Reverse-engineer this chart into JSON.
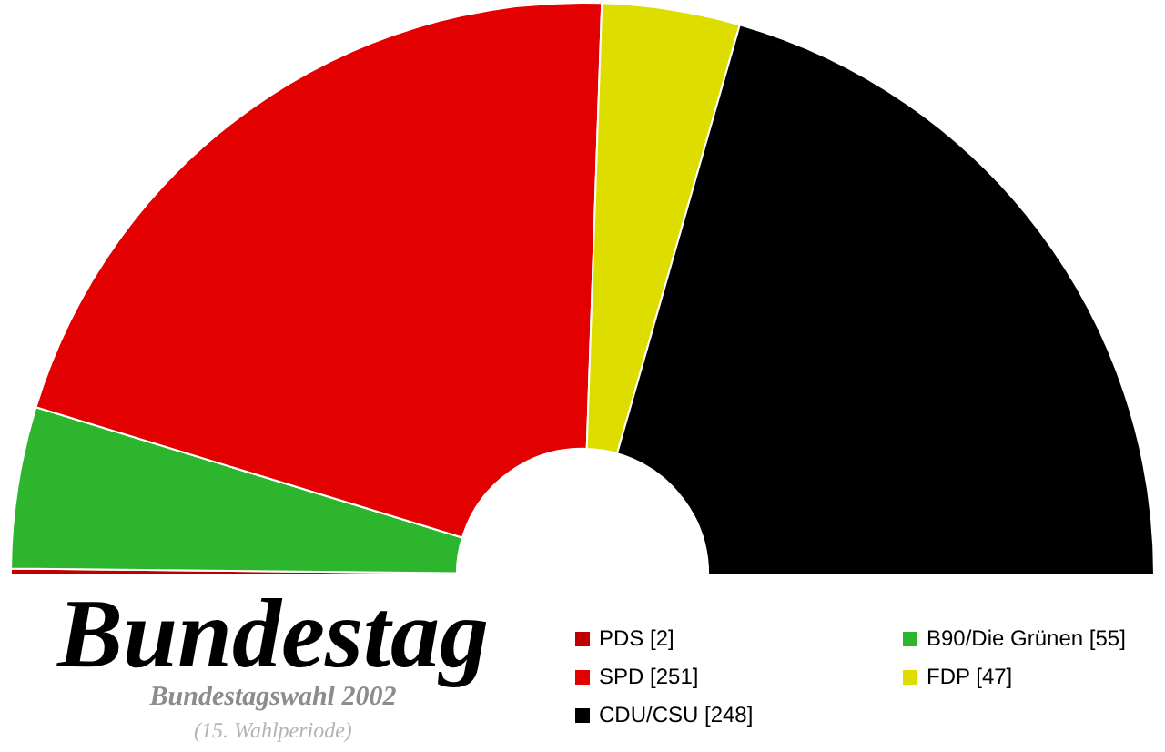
{
  "chart_data": {
    "type": "donut",
    "title": "Bundestag",
    "subtitle": "Bundestagswahl 2002",
    "annotations": [
      "(15. Wahlperiode)"
    ],
    "categories": [
      "PDS [2]",
      "B90/Die Grünen [55]",
      "SPD [251]",
      "FDP [47]",
      "CDU/CSU [248]"
    ],
    "values": [
      2,
      55,
      251,
      47,
      248
    ],
    "colors": [
      "#c00000",
      "#2db52d",
      "#e30000",
      "#dddd00",
      "#000000"
    ],
    "legend": "bottom right"
  }
}
